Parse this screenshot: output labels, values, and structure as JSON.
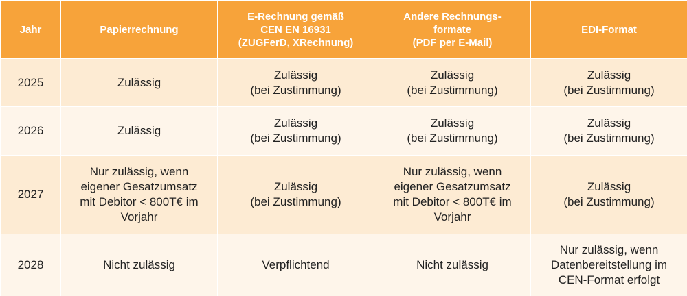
{
  "table": {
    "headers": [
      "Jahr",
      "Papierrechnung",
      "E-Rechnung gemäß\nCEN EN 16931\n(ZUGFerD, XRechnung)",
      "Andere Rechnungs-\nformate\n(PDF per E-Mail)",
      "EDI-Format"
    ],
    "rows": [
      {
        "year": "2025",
        "paper": "Zulässig",
        "erechnung": "Zulässig\n(bei Zustimmung)",
        "other": "Zulässig\n(bei Zustimmung)",
        "edi": "Zulässig\n(bei Zustimmung)"
      },
      {
        "year": "2026",
        "paper": "Zulässig",
        "erechnung": "Zulässig\n(bei Zustimmung)",
        "other": "Zulässig\n(bei Zustimmung)",
        "edi": "Zulässig\n(bei Zustimmung)"
      },
      {
        "year": "2027",
        "paper": "Nur zulässig, wenn\neigener Gesatzumsatz\nmit Debitor < 800T€ im\nVorjahr",
        "erechnung": "Zulässig\n(bei Zustimmung)",
        "other": "Nur zulässig, wenn\neigener Gesatzumsatz\nmit Debitor < 800T€ im\nVorjahr",
        "edi": "Zulässig\n(bei Zustimmung)"
      },
      {
        "year": "2028",
        "paper": "Nicht zulässig",
        "erechnung": "Verpflichtend",
        "other": "Nicht zulässig",
        "edi": "Nur zulässig, wenn\nDatenbereitstellung im\nCEN-Format erfolgt"
      }
    ]
  },
  "colors": {
    "header_bg": "#f7a33a",
    "header_text": "#ffffff",
    "row_bg_a": "#fdebd3",
    "row_bg_b": "#fef5ea"
  }
}
